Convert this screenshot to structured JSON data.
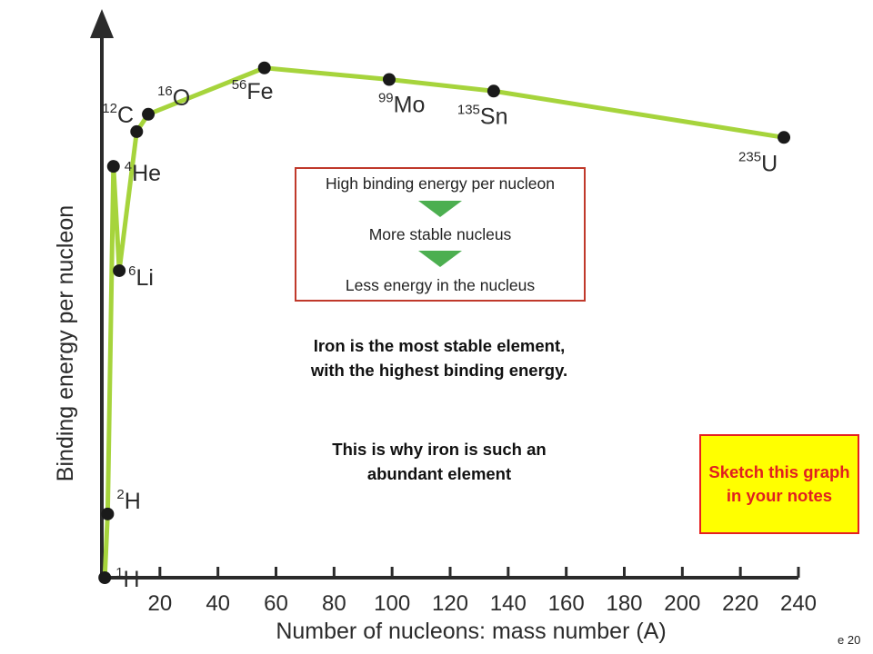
{
  "chart_data": {
    "type": "line",
    "title": "",
    "xlabel": "Number of nucleons: mass number (A)",
    "ylabel": "Binding energy per nucleon",
    "xlim": [
      0,
      240
    ],
    "ylim": [
      0,
      9
    ],
    "x_ticks": [
      "20",
      "40",
      "60",
      "80",
      "100",
      "120",
      "140",
      "160",
      "180",
      "200",
      "220",
      "240"
    ],
    "grid": false,
    "line_color": "#a6d43c",
    "marker_color": "#1a1a1a",
    "points": [
      {
        "x": 1,
        "y": 0,
        "mass": "1",
        "symbol": "H"
      },
      {
        "x": 2,
        "y": 1.1,
        "mass": "2",
        "symbol": "H"
      },
      {
        "x": 4,
        "y": 7.1,
        "mass": "4",
        "symbol": "He"
      },
      {
        "x": 6,
        "y": 5.3,
        "mass": "6",
        "symbol": "Li"
      },
      {
        "x": 12,
        "y": 7.7,
        "mass": "12",
        "symbol": "C"
      },
      {
        "x": 16,
        "y": 8.0,
        "mass": "16",
        "symbol": "O"
      },
      {
        "x": 56,
        "y": 8.8,
        "mass": "56",
        "symbol": "Fe"
      },
      {
        "x": 99,
        "y": 8.6,
        "mass": "99",
        "symbol": "Mo"
      },
      {
        "x": 135,
        "y": 8.4,
        "mass": "135",
        "symbol": "Sn"
      },
      {
        "x": 235,
        "y": 7.6,
        "mass": "235",
        "symbol": "U"
      }
    ]
  },
  "flow": {
    "line1": "High binding energy per nucleon",
    "line2": "More stable nucleus",
    "line3": "Less energy in the nucleus",
    "border_color": "#c0392b",
    "arrow_color": "#4caf50"
  },
  "caption": {
    "para1": "Iron is the most stable element, with the highest binding energy.",
    "para2": "This is why iron is such an abundant element"
  },
  "note": {
    "text": "Sketch this graph in your notes",
    "bg_color": "#ffff00",
    "text_color": "#e02020"
  },
  "slide_number": "e 20"
}
